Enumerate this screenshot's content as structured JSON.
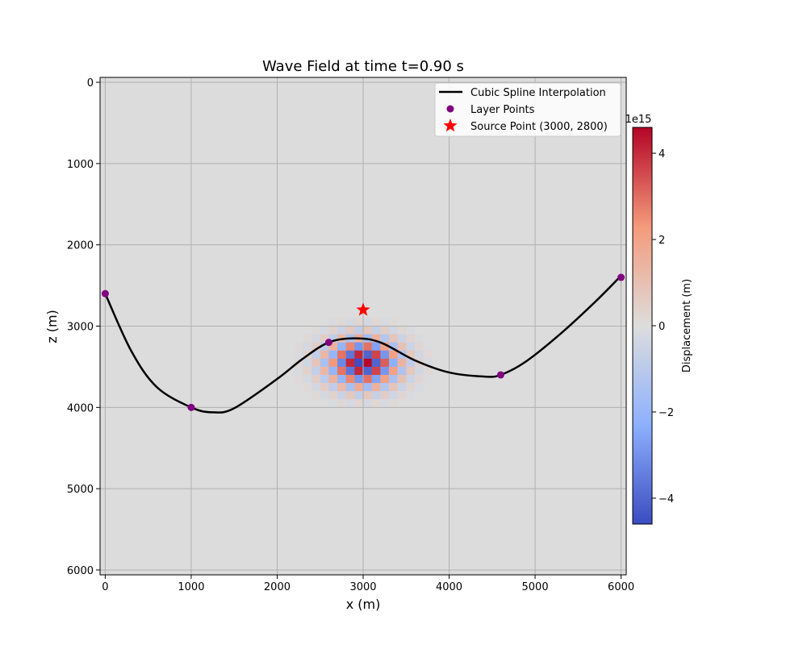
{
  "chart_data": {
    "type": "heatmap",
    "title": "Wave Field at time t=0.90 s",
    "xlabel": "x (m)",
    "ylabel": "z (m)",
    "xlim": [
      -60,
      6060
    ],
    "ylim": [
      6060,
      -60
    ],
    "y_inverted": true,
    "grid": true,
    "x_ticks": [
      0,
      1000,
      2000,
      3000,
      4000,
      5000,
      6000
    ],
    "y_ticks": [
      0,
      1000,
      2000,
      3000,
      4000,
      5000,
      6000
    ],
    "background_color": "#dcdcdc",
    "heatmap": {
      "description_grid_cell_m": 100,
      "center": [
        3000,
        3450
      ],
      "value_range": [
        -4600000000000000.0,
        4600000000000000.0
      ]
    },
    "colorbar": {
      "label": "Displacement (m)",
      "range": [
        -4.6,
        4.6
      ],
      "ticks": [
        -4,
        -2,
        0,
        2,
        4
      ],
      "tick_labels": [
        "−4",
        "−2",
        "0",
        "2",
        "4"
      ],
      "offset_text": "1e15",
      "colormap": "coolwarm"
    },
    "series": [
      {
        "name": "Cubic Spline Interpolation",
        "kind": "line",
        "color": "#000000",
        "x": [
          0,
          300,
          600,
          1000,
          1250,
          1500,
          2000,
          2300,
          2600,
          2900,
          3200,
          3600,
          4000,
          4400,
          4600,
          4900,
          5300,
          5700,
          6000
        ],
        "y": [
          2600,
          3300,
          3750,
          4000,
          4060,
          4010,
          3650,
          3400,
          3200,
          3150,
          3200,
          3420,
          3570,
          3620,
          3600,
          3430,
          3090,
          2700,
          2380
        ]
      },
      {
        "name": "Layer Points",
        "kind": "scatter",
        "color": "#800080",
        "x": [
          0,
          1000,
          2600,
          4600,
          6000
        ],
        "y": [
          2600,
          4000,
          3200,
          3600,
          2400
        ]
      },
      {
        "name": "Source Point (3000, 2800)",
        "kind": "marker",
        "marker": "star",
        "color": "#ff0000",
        "x": [
          3000
        ],
        "y": [
          2800
        ]
      }
    ],
    "legend": {
      "placement": "top-right",
      "entries": [
        "Cubic Spline Interpolation",
        "Layer Points",
        "Source Point (3000, 2800)"
      ]
    }
  }
}
